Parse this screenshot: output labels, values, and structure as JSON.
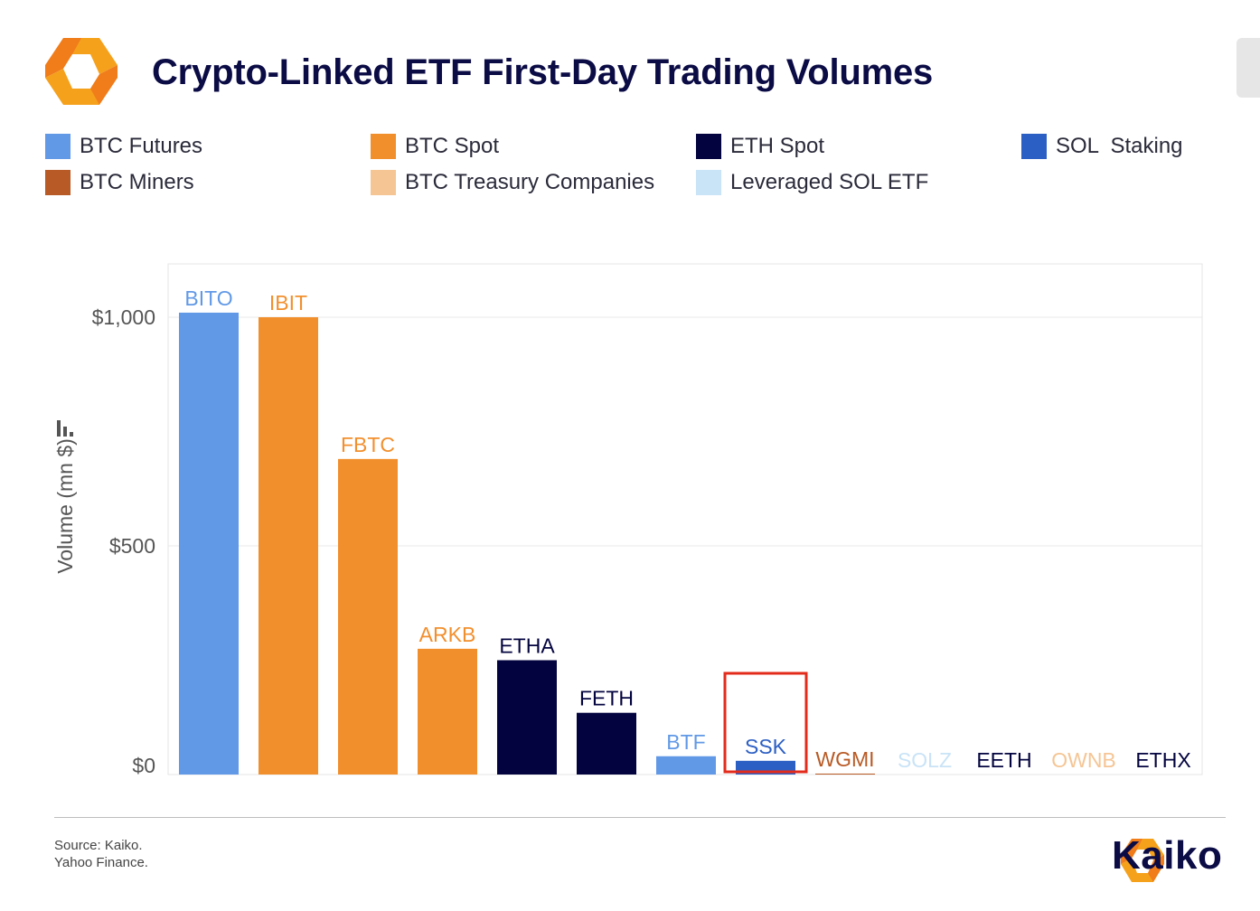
{
  "header": {
    "title": "Crypto-Linked ETF First-Day Trading Volumes"
  },
  "legend": [
    {
      "label": "BTC Futures",
      "color": "#6199e6"
    },
    {
      "label": "BTC Spot",
      "color": "#f28f2d"
    },
    {
      "label": "ETH Spot",
      "color": "#03033f"
    },
    {
      "label": "SOL  Staking",
      "color": "#2c5fc4"
    },
    {
      "label": "BTC Miners",
      "color": "#b85a25"
    },
    {
      "label": "BTC Treasury Companies",
      "color": "#f5c594"
    },
    {
      "label": "Leveraged SOL ETF",
      "color": "#c9e3f7"
    }
  ],
  "chart_data": {
    "type": "bar",
    "ylabel": "Volume (mn $)",
    "ylim": [
      0,
      1100
    ],
    "yticks": [
      0,
      500,
      1000
    ],
    "ytick_labels": [
      "$0",
      "$500",
      "$1,000"
    ],
    "grid": true,
    "categories": [
      "BITO",
      "IBIT",
      "FBTC",
      "ARKB",
      "ETHA",
      "FETH",
      "BTF",
      "SSK",
      "WGMI",
      "SOLZ",
      "EETH",
      "OWNB",
      "ETHX"
    ],
    "values": [
      1010,
      1000,
      690,
      275,
      250,
      135,
      40,
      30,
      2,
      0,
      0,
      0,
      0
    ],
    "colors": [
      "#6199e6",
      "#f28f2d",
      "#f28f2d",
      "#f28f2d",
      "#03033f",
      "#03033f",
      "#6199e6",
      "#2c5fc4",
      "#b85a25",
      "#c9e3f7",
      "#03033f",
      "#f5c594",
      "#03033f"
    ],
    "highlight": "SSK",
    "highlight_color": "#e32b1b"
  },
  "footer": {
    "source_line1": "Source: Kaiko.",
    "source_line2": "Yahoo Finance.",
    "brand": "Kaiko"
  }
}
